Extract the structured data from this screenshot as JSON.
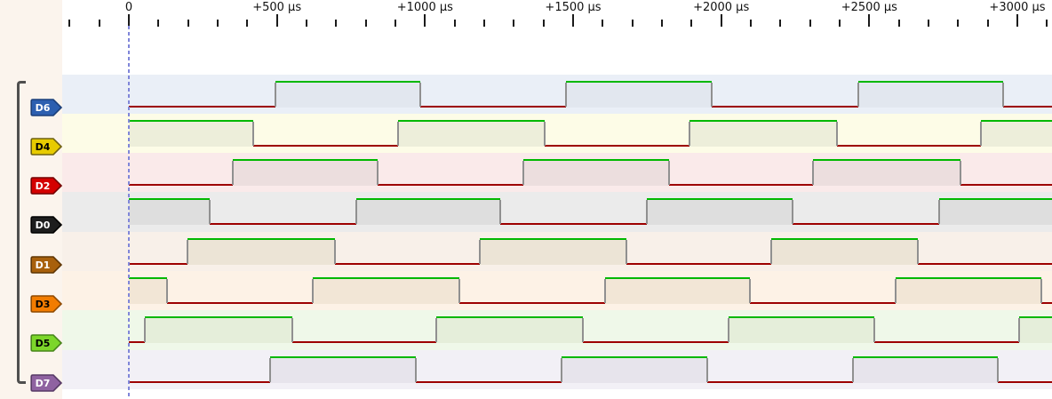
{
  "view": {
    "kind": "logic-analyzer-trace-view"
  },
  "ruler": {
    "unit": "µs",
    "major_labels": [
      {
        "t": 0,
        "label": "0"
      },
      {
        "t": 500,
        "label": "+500 µs"
      },
      {
        "t": 1000,
        "label": "+1000 µs"
      },
      {
        "t": 1500,
        "label": "+1500 µs"
      },
      {
        "t": 2000,
        "label": "+2000 µs"
      },
      {
        "t": 2500,
        "label": "+2500 µs"
      },
      {
        "t": 3000,
        "label": "+3000 µs"
      }
    ],
    "minor_step_us": 100,
    "major_step_us": 500,
    "tick_t_min_us": -200,
    "tick_t_max_us": 3100
  },
  "cursor": {
    "t_us": 0,
    "color": "#8086d9"
  },
  "colors": {
    "high_line": "#00b800",
    "low_line": "#9d0000",
    "edge": "#909090",
    "bracket": "#4f4f4f",
    "left_panel_bg": "#fbf4ed",
    "tick": "#1a1a1a"
  },
  "channels": [
    {
      "name": "D6",
      "tag_fill": "#2c5fb0",
      "tag_border": "#1b3f7a",
      "tag_text_color": "#ffffff",
      "row_bg": "#eaeff7",
      "high_fill": "#e2e7ef",
      "initial": 0,
      "transitions_us": [
        495,
        984,
        1476,
        1968,
        2463,
        2952
      ]
    },
    {
      "name": "D4",
      "tag_fill": "#e7cb00",
      "tag_border": "#6e6212",
      "tag_text_color": "#000000",
      "row_bg": "#fdfce7",
      "high_fill": "#edeeda",
      "initial": 1,
      "transitions_us": [
        420,
        909,
        1404,
        1893,
        2391,
        2877
      ]
    },
    {
      "name": "D2",
      "tag_fill": "#d40000",
      "tag_border": "#750000",
      "tag_text_color": "#ffffff",
      "row_bg": "#faeaea",
      "high_fill": "#ecdede",
      "initial": 0,
      "transitions_us": [
        351,
        840,
        1332,
        1824,
        2310,
        2808
      ]
    },
    {
      "name": "D0",
      "tag_fill": "#1d1d1d",
      "tag_border": "#000000",
      "tag_text_color": "#ffffff",
      "row_bg": "#ebebeb",
      "high_fill": "#dedede",
      "initial": 1,
      "transitions_us": [
        273,
        768,
        1254,
        1749,
        2241,
        2736
      ]
    },
    {
      "name": "D1",
      "tag_fill": "#a8600c",
      "tag_border": "#5f3605",
      "tag_text_color": "#ffffff",
      "row_bg": "#f8f0e9",
      "high_fill": "#ece4d6",
      "initial": 0,
      "transitions_us": [
        198,
        696,
        1185,
        1680,
        2169,
        2664
      ]
    },
    {
      "name": "D3",
      "tag_fill": "#f27c00",
      "tag_border": "#8f4a00",
      "tag_text_color": "#000000",
      "row_bg": "#fdf2e6",
      "high_fill": "#f2e6d6",
      "initial": 1,
      "transitions_us": [
        129,
        621,
        1116,
        1608,
        2097,
        2589,
        3081
      ]
    },
    {
      "name": "D5",
      "tag_fill": "#7cd62a",
      "tag_border": "#47851a",
      "tag_text_color": "#000000",
      "row_bg": "#eff8e9",
      "high_fill": "#e5eeda",
      "initial": 0,
      "transitions_us": [
        54,
        552,
        1038,
        1533,
        2025,
        2517,
        3006
      ]
    },
    {
      "name": "D7",
      "tag_fill": "#8f62a1",
      "tag_border": "#573a66",
      "tag_text_color": "#ffffff",
      "row_bg": "#f2f0f6",
      "high_fill": "#e7e4ec",
      "initial": 0,
      "transitions_us": [
        477,
        969,
        1461,
        1953,
        2445,
        2934
      ]
    }
  ]
}
